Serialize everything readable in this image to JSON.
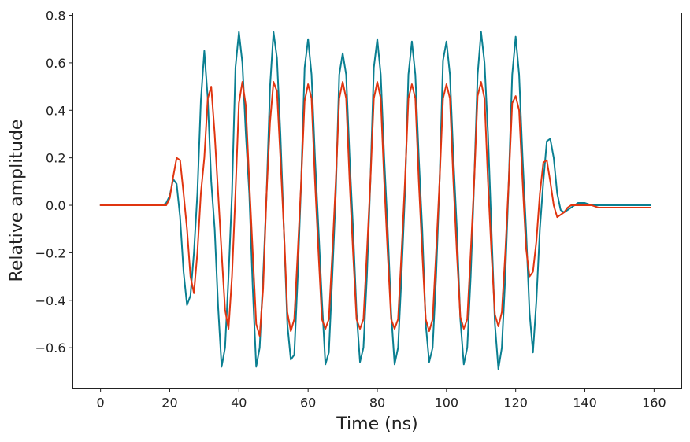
{
  "chart_data": {
    "type": "line",
    "title": "",
    "xlabel": "Time (ns)",
    "ylabel": "Relative amplitude",
    "xlim": [
      -8,
      168
    ],
    "ylim": [
      -0.77,
      0.81
    ],
    "xticks": [
      0,
      20,
      40,
      60,
      80,
      100,
      120,
      140,
      160
    ],
    "xtick_labels": [
      "0",
      "20",
      "40",
      "60",
      "80",
      "100",
      "120",
      "140",
      "160"
    ],
    "yticks": [
      -0.6,
      -0.4,
      -0.2,
      0.0,
      0.2,
      0.4,
      0.6,
      0.8
    ],
    "ytick_labels": [
      "−0.6",
      "−0.4",
      "−0.2",
      "0.0",
      "0.2",
      "0.4",
      "0.6",
      "0.8"
    ],
    "grid": false,
    "series": [
      {
        "color": "#0a7f91",
        "points": [
          [
            0,
            0
          ],
          [
            2,
            0
          ],
          [
            4,
            0
          ],
          [
            6,
            0
          ],
          [
            8,
            0
          ],
          [
            10,
            0
          ],
          [
            12,
            0
          ],
          [
            14,
            0
          ],
          [
            16,
            0
          ],
          [
            18,
            0
          ],
          [
            19,
            0.01
          ],
          [
            20,
            0.04
          ],
          [
            21,
            0.11
          ],
          [
            22,
            0.09
          ],
          [
            23,
            -0.05
          ],
          [
            24,
            -0.28
          ],
          [
            25,
            -0.42
          ],
          [
            26,
            -0.38
          ],
          [
            27,
            -0.2
          ],
          [
            28,
            0.05
          ],
          [
            29,
            0.44
          ],
          [
            30,
            0.65
          ],
          [
            31,
            0.45
          ],
          [
            32,
            0.1
          ],
          [
            33,
            -0.1
          ],
          [
            34,
            -0.43
          ],
          [
            35,
            -0.68
          ],
          [
            36,
            -0.6
          ],
          [
            37,
            -0.3
          ],
          [
            38,
            0.05
          ],
          [
            39,
            0.58
          ],
          [
            40,
            0.73
          ],
          [
            41,
            0.6
          ],
          [
            42,
            0.3
          ],
          [
            43,
            0.05
          ],
          [
            44,
            -0.35
          ],
          [
            45,
            -0.68
          ],
          [
            46,
            -0.6
          ],
          [
            47,
            -0.3
          ],
          [
            48,
            0.05
          ],
          [
            49,
            0.5
          ],
          [
            50,
            0.73
          ],
          [
            51,
            0.62
          ],
          [
            52,
            0.3
          ],
          [
            53,
            -0.1
          ],
          [
            54,
            -0.5
          ],
          [
            55,
            -0.65
          ],
          [
            56,
            -0.63
          ],
          [
            57,
            -0.3
          ],
          [
            58,
            0.1
          ],
          [
            59,
            0.58
          ],
          [
            60,
            0.7
          ],
          [
            61,
            0.55
          ],
          [
            62,
            0.2
          ],
          [
            63,
            -0.1
          ],
          [
            64,
            -0.4
          ],
          [
            65,
            -0.67
          ],
          [
            66,
            -0.62
          ],
          [
            67,
            -0.3
          ],
          [
            68,
            0.05
          ],
          [
            69,
            0.55
          ],
          [
            70,
            0.64
          ],
          [
            71,
            0.55
          ],
          [
            72,
            0.2
          ],
          [
            73,
            -0.1
          ],
          [
            74,
            -0.45
          ],
          [
            75,
            -0.66
          ],
          [
            76,
            -0.6
          ],
          [
            77,
            -0.3
          ],
          [
            78,
            0.1
          ],
          [
            79,
            0.58
          ],
          [
            80,
            0.7
          ],
          [
            81,
            0.55
          ],
          [
            82,
            0.2
          ],
          [
            83,
            -0.1
          ],
          [
            84,
            -0.45
          ],
          [
            85,
            -0.67
          ],
          [
            86,
            -0.6
          ],
          [
            87,
            -0.3
          ],
          [
            88,
            0.05
          ],
          [
            89,
            0.55
          ],
          [
            90,
            0.69
          ],
          [
            91,
            0.55
          ],
          [
            92,
            0.2
          ],
          [
            93,
            -0.1
          ],
          [
            94,
            -0.5
          ],
          [
            95,
            -0.66
          ],
          [
            96,
            -0.6
          ],
          [
            97,
            -0.3
          ],
          [
            98,
            0.1
          ],
          [
            99,
            0.61
          ],
          [
            100,
            0.69
          ],
          [
            101,
            0.55
          ],
          [
            102,
            0.2
          ],
          [
            103,
            -0.1
          ],
          [
            104,
            -0.48
          ],
          [
            105,
            -0.67
          ],
          [
            106,
            -0.6
          ],
          [
            107,
            -0.3
          ],
          [
            108,
            0.1
          ],
          [
            109,
            0.55
          ],
          [
            110,
            0.73
          ],
          [
            111,
            0.6
          ],
          [
            112,
            0.3
          ],
          [
            113,
            -0.1
          ],
          [
            114,
            -0.5
          ],
          [
            115,
            -0.69
          ],
          [
            116,
            -0.6
          ],
          [
            117,
            -0.3
          ],
          [
            118,
            0.1
          ],
          [
            119,
            0.55
          ],
          [
            120,
            0.71
          ],
          [
            121,
            0.55
          ],
          [
            122,
            0.2
          ],
          [
            123,
            -0.1
          ],
          [
            124,
            -0.45
          ],
          [
            125,
            -0.62
          ],
          [
            126,
            -0.4
          ],
          [
            127,
            -0.1
          ],
          [
            128,
            0.1
          ],
          [
            129,
            0.27
          ],
          [
            130,
            0.28
          ],
          [
            131,
            0.2
          ],
          [
            132,
            0.05
          ],
          [
            133,
            -0.02
          ],
          [
            134,
            -0.03
          ],
          [
            135,
            -0.02
          ],
          [
            136,
            -0.01
          ],
          [
            137,
            0
          ],
          [
            138,
            0.01
          ],
          [
            140,
            0.01
          ],
          [
            142,
            0
          ],
          [
            144,
            0
          ],
          [
            146,
            0
          ],
          [
            148,
            0
          ],
          [
            150,
            0
          ],
          [
            152,
            0
          ],
          [
            154,
            0
          ],
          [
            156,
            0
          ],
          [
            158,
            0
          ],
          [
            159,
            0
          ]
        ]
      },
      {
        "color": "#e03510",
        "points": [
          [
            0,
            0
          ],
          [
            2,
            0
          ],
          [
            4,
            0
          ],
          [
            6,
            0
          ],
          [
            8,
            0
          ],
          [
            10,
            0
          ],
          [
            12,
            0
          ],
          [
            14,
            0
          ],
          [
            16,
            0
          ],
          [
            18,
            0
          ],
          [
            19,
            0
          ],
          [
            20,
            0.03
          ],
          [
            21,
            0.12
          ],
          [
            22,
            0.2
          ],
          [
            23,
            0.19
          ],
          [
            24,
            0.05
          ],
          [
            25,
            -0.1
          ],
          [
            26,
            -0.3
          ],
          [
            27,
            -0.37
          ],
          [
            28,
            -0.2
          ],
          [
            29,
            0.05
          ],
          [
            30,
            0.2
          ],
          [
            31,
            0.45
          ],
          [
            32,
            0.5
          ],
          [
            33,
            0.3
          ],
          [
            34,
            0.05
          ],
          [
            35,
            -0.2
          ],
          [
            36,
            -0.44
          ],
          [
            37,
            -0.52
          ],
          [
            38,
            -0.3
          ],
          [
            39,
            0.05
          ],
          [
            40,
            0.43
          ],
          [
            41,
            0.52
          ],
          [
            42,
            0.42
          ],
          [
            43,
            0.1
          ],
          [
            44,
            -0.2
          ],
          [
            45,
            -0.5
          ],
          [
            46,
            -0.55
          ],
          [
            47,
            -0.35
          ],
          [
            48,
            0.05
          ],
          [
            49,
            0.35
          ],
          [
            50,
            0.52
          ],
          [
            51,
            0.48
          ],
          [
            52,
            0.2
          ],
          [
            53,
            -0.1
          ],
          [
            54,
            -0.45
          ],
          [
            55,
            -0.53
          ],
          [
            56,
            -0.48
          ],
          [
            57,
            -0.2
          ],
          [
            58,
            0.1
          ],
          [
            59,
            0.44
          ],
          [
            60,
            0.51
          ],
          [
            61,
            0.45
          ],
          [
            62,
            0.1
          ],
          [
            63,
            -0.2
          ],
          [
            64,
            -0.48
          ],
          [
            65,
            -0.52
          ],
          [
            66,
            -0.48
          ],
          [
            67,
            -0.2
          ],
          [
            68,
            0.1
          ],
          [
            69,
            0.45
          ],
          [
            70,
            0.52
          ],
          [
            71,
            0.45
          ],
          [
            72,
            0.1
          ],
          [
            73,
            -0.2
          ],
          [
            74,
            -0.48
          ],
          [
            75,
            -0.52
          ],
          [
            76,
            -0.48
          ],
          [
            77,
            -0.2
          ],
          [
            78,
            0.1
          ],
          [
            79,
            0.45
          ],
          [
            80,
            0.52
          ],
          [
            81,
            0.45
          ],
          [
            82,
            0.1
          ],
          [
            83,
            -0.2
          ],
          [
            84,
            -0.48
          ],
          [
            85,
            -0.52
          ],
          [
            86,
            -0.48
          ],
          [
            87,
            -0.2
          ],
          [
            88,
            0.1
          ],
          [
            89,
            0.45
          ],
          [
            90,
            0.51
          ],
          [
            91,
            0.45
          ],
          [
            92,
            0.1
          ],
          [
            93,
            -0.2
          ],
          [
            94,
            -0.48
          ],
          [
            95,
            -0.53
          ],
          [
            96,
            -0.48
          ],
          [
            97,
            -0.2
          ],
          [
            98,
            0.1
          ],
          [
            99,
            0.45
          ],
          [
            100,
            0.51
          ],
          [
            101,
            0.45
          ],
          [
            102,
            0.1
          ],
          [
            103,
            -0.2
          ],
          [
            104,
            -0.47
          ],
          [
            105,
            -0.52
          ],
          [
            106,
            -0.48
          ],
          [
            107,
            -0.2
          ],
          [
            108,
            0.1
          ],
          [
            109,
            0.46
          ],
          [
            110,
            0.52
          ],
          [
            111,
            0.45
          ],
          [
            112,
            0.1
          ],
          [
            113,
            -0.2
          ],
          [
            114,
            -0.46
          ],
          [
            115,
            -0.51
          ],
          [
            116,
            -0.45
          ],
          [
            117,
            -0.2
          ],
          [
            118,
            0.1
          ],
          [
            119,
            0.43
          ],
          [
            120,
            0.46
          ],
          [
            121,
            0.4
          ],
          [
            122,
            0.1
          ],
          [
            123,
            -0.18
          ],
          [
            124,
            -0.3
          ],
          [
            125,
            -0.28
          ],
          [
            126,
            -0.15
          ],
          [
            127,
            0.05
          ],
          [
            128,
            0.18
          ],
          [
            129,
            0.19
          ],
          [
            130,
            0.1
          ],
          [
            131,
            0
          ],
          [
            132,
            -0.05
          ],
          [
            133,
            -0.04
          ],
          [
            134,
            -0.03
          ],
          [
            135,
            -0.01
          ],
          [
            136,
            0
          ],
          [
            138,
            0
          ],
          [
            140,
            0
          ],
          [
            142,
            0
          ],
          [
            144,
            -0.01
          ],
          [
            146,
            -0.01
          ],
          [
            148,
            -0.01
          ],
          [
            150,
            -0.01
          ],
          [
            152,
            -0.01
          ],
          [
            154,
            -0.01
          ],
          [
            156,
            -0.01
          ],
          [
            158,
            -0.01
          ],
          [
            159,
            -0.01
          ]
        ]
      }
    ]
  }
}
